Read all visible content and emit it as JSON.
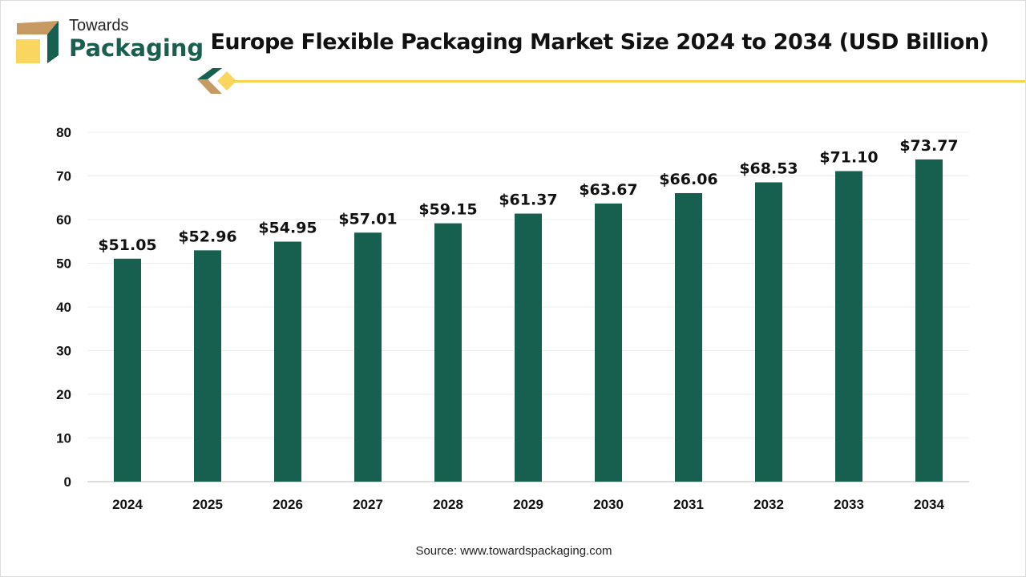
{
  "logo": {
    "line1": "Towards",
    "line2": "Packaging"
  },
  "source": "Source: www.towardspackaging.com",
  "colors": {
    "bar": "#17604f",
    "accent": "#f5d451",
    "brown": "#c79a64"
  },
  "chart_data": {
    "type": "bar",
    "title": "Europe Flexible Packaging Market Size 2024 to 2034 (USD Billion)",
    "categories": [
      "2024",
      "2025",
      "2026",
      "2027",
      "2028",
      "2029",
      "2030",
      "2031",
      "2032",
      "2033",
      "2034"
    ],
    "values": [
      51.05,
      52.96,
      54.95,
      57.01,
      59.15,
      61.37,
      63.67,
      66.06,
      68.53,
      71.1,
      73.77
    ],
    "labels": [
      "$51.05",
      "$52.96",
      "$54.95",
      "$57.01",
      "$59.15",
      "$61.37",
      "$63.67",
      "$66.06",
      "$68.53",
      "$71.10",
      "$73.77"
    ],
    "yticks": [
      "0",
      "10",
      "20",
      "30",
      "40",
      "50",
      "60",
      "70",
      "80"
    ],
    "ylim": [
      0,
      80
    ],
    "xlabel": "",
    "ylabel": "",
    "grid": true
  }
}
